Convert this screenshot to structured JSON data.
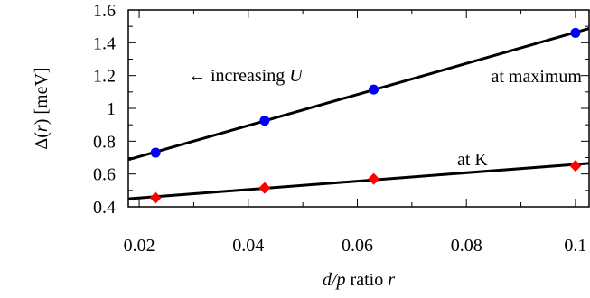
{
  "chart_data": {
    "type": "line",
    "xlabel": {
      "pre": "d/p",
      "mid": " ratio ",
      "var": "r"
    },
    "ylabel": {
      "pre": "Δ(",
      "var": "r",
      "post": ") [meV]"
    },
    "xlim": [
      0.018,
      0.1025
    ],
    "ylim": [
      0.4,
      1.6
    ],
    "xticks": [
      0.02,
      0.04,
      0.06,
      0.08,
      0.1
    ],
    "xtick_labels": [
      "0.02",
      "0.04",
      "0.06",
      "0.08",
      "0.1"
    ],
    "xticks_minor": [
      0.03,
      0.05,
      0.07,
      0.09
    ],
    "yticks": [
      0.4,
      0.6,
      0.8,
      1.0,
      1.2,
      1.4,
      1.6
    ],
    "ytick_labels": [
      "0.4",
      "0.6",
      "0.8",
      "1",
      "1.2",
      "1.4",
      "1.6"
    ],
    "yticks_minor": [
      0.5,
      0.7,
      0.9,
      1.1,
      1.3,
      1.5
    ],
    "grid": false,
    "series": [
      {
        "name": "at maximum",
        "marker": "circle",
        "color": "#0000ff",
        "x": [
          0.023,
          0.043,
          0.063,
          0.1
        ],
        "y": [
          0.73,
          0.925,
          1.115,
          1.46
        ],
        "fit": {
          "x": [
            0.018,
            0.1025
          ],
          "y": [
            0.687,
            1.487
          ]
        }
      },
      {
        "name": "at K",
        "marker": "diamond",
        "color": "#ff0000",
        "x": [
          0.023,
          0.043,
          0.063,
          0.1
        ],
        "y": [
          0.455,
          0.515,
          0.57,
          0.65
        ],
        "fit": {
          "x": [
            0.018,
            0.1025
          ],
          "y": [
            0.449,
            0.665
          ]
        }
      }
    ],
    "annotations": {
      "arrow": "← increasing ",
      "arrow_var": "U",
      "label_max": "at maximum",
      "label_k": "at K"
    }
  }
}
